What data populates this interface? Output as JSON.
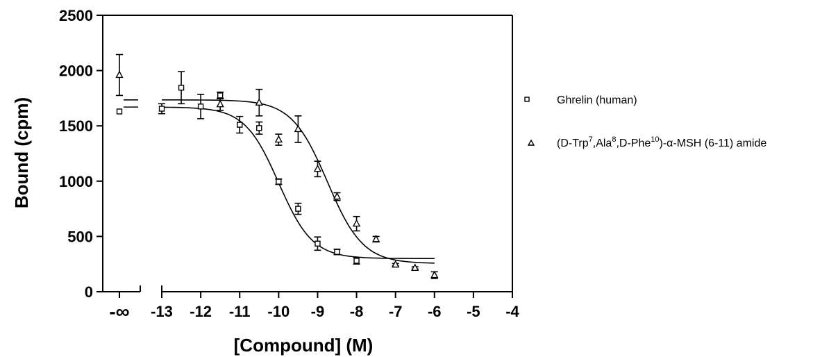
{
  "chart_data": {
    "type": "scatter",
    "xlabel": "[Compound] (M)",
    "ylabel": "Bound (cpm)",
    "ylim": [
      0,
      2500
    ],
    "xlim": [
      -13,
      -4
    ],
    "yticks": [
      0,
      500,
      1000,
      1500,
      2000,
      2500
    ],
    "xticks": [
      -13,
      -12,
      -11,
      -10,
      -9,
      -8,
      -7,
      -6,
      -5,
      -4
    ],
    "x_break_label": "-∞",
    "grid": false,
    "legend_position": "right",
    "series": [
      {
        "name": "Ghrelin (human)",
        "marker": "square",
        "neg_inf_point": {
          "y": 1630
        },
        "x": [
          -13,
          -12.5,
          -12,
          -11.5,
          -11,
          -10.5,
          -10,
          -9.5,
          -9,
          -8.5,
          -8
        ],
        "y": [
          1655,
          1845,
          1675,
          1775,
          1510,
          1480,
          995,
          750,
          435,
          360,
          280
        ],
        "yerr": [
          45,
          145,
          110,
          30,
          75,
          55,
          25,
          50,
          60,
          25,
          30
        ],
        "fit": {
          "bottom": 300,
          "top": 1670,
          "logEC50": -10.0,
          "hill": 1.0,
          "baseline_y": 1670
        }
      },
      {
        "name": "(D-Trp7,Ala8,D-Phe10)-α-MSH (6-11) amide",
        "name_parts": {
          "p1": "(D-Trp",
          "s1": "7",
          "p2": ",Ala",
          "s2": "8",
          "p3": ",D-Phe",
          "s3": "10",
          "p4": ")-α-MSH (6-11) amide"
        },
        "marker": "triangle",
        "neg_inf_point": {
          "y": 1960,
          "yerr": 185
        },
        "x": [
          -11.5,
          -10.5,
          -10,
          -9.5,
          -9,
          -8.5,
          -8,
          -7.5,
          -7,
          -6.5,
          -6
        ],
        "y": [
          1695,
          1710,
          1375,
          1470,
          1110,
          860,
          615,
          475,
          245,
          215,
          150
        ],
        "yerr": [
          55,
          120,
          50,
          120,
          70,
          35,
          65,
          25,
          10,
          10,
          30
        ],
        "fit": {
          "bottom": 255,
          "top": 1735,
          "logEC50": -8.75,
          "hill": 0.95,
          "baseline_y": 1735
        }
      }
    ]
  }
}
